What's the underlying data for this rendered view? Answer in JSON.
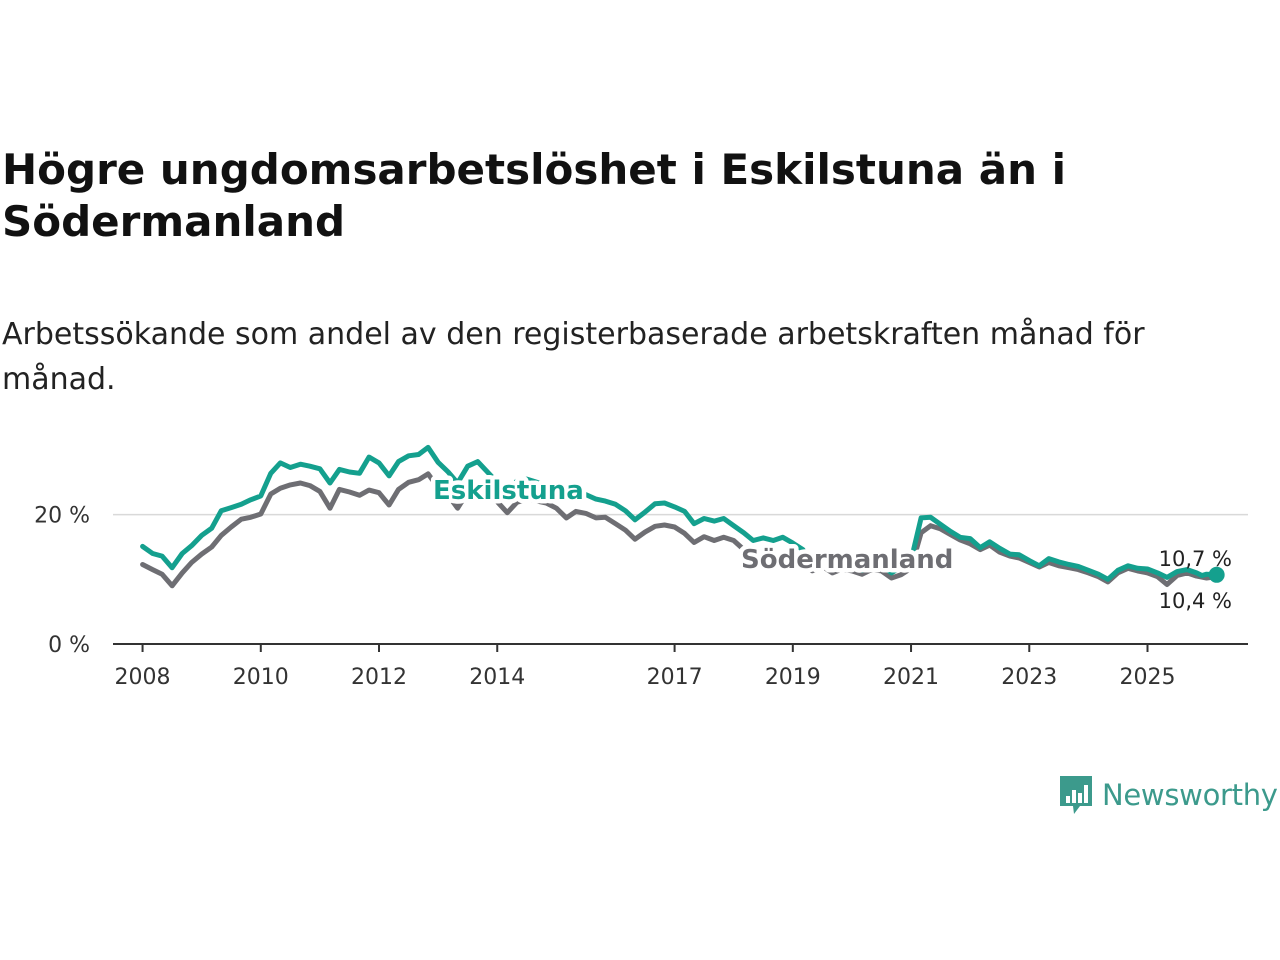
{
  "title": "Högre ungdomsarbetslöshet i Eskilstuna än i Södermanland",
  "subtitle": "Arbetssökande som andel av den registerbaserade arbetskraften månad för månad.",
  "brand": {
    "name": "Newsworthy",
    "color": "#3c9a8c"
  },
  "chart_data": {
    "type": "line",
    "ylim": [
      0,
      30
    ],
    "xlim": [
      2007.5,
      2026.7
    ],
    "y_ticks": [
      0,
      20
    ],
    "y_tick_labels": [
      "0 %",
      "20 %"
    ],
    "x_ticks": [
      2008,
      2010,
      2012,
      2014,
      2017,
      2019,
      2021,
      2023,
      2025
    ],
    "x_tick_labels": [
      "2008",
      "2010",
      "2012",
      "2014",
      "2017",
      "2019",
      "2021",
      "2023",
      "2025"
    ],
    "series": [
      {
        "name": "Södermanland",
        "color": "#6e6e73",
        "label": "Södermanland",
        "end_value_label": "10,4 %",
        "points": [
          [
            2008.0,
            12.3
          ],
          [
            2008.17,
            11.5
          ],
          [
            2008.33,
            10.8
          ],
          [
            2008.5,
            9.0
          ],
          [
            2008.67,
            11.0
          ],
          [
            2008.83,
            12.6
          ],
          [
            2009.0,
            13.9
          ],
          [
            2009.17,
            15.0
          ],
          [
            2009.33,
            16.8
          ],
          [
            2009.5,
            18.1
          ],
          [
            2009.67,
            19.3
          ],
          [
            2009.83,
            19.6
          ],
          [
            2010.0,
            20.1
          ],
          [
            2010.17,
            23.2
          ],
          [
            2010.33,
            24.1
          ],
          [
            2010.5,
            24.6
          ],
          [
            2010.67,
            24.9
          ],
          [
            2010.83,
            24.5
          ],
          [
            2011.0,
            23.6
          ],
          [
            2011.17,
            21.0
          ],
          [
            2011.33,
            23.9
          ],
          [
            2011.5,
            23.5
          ],
          [
            2011.67,
            23.0
          ],
          [
            2011.83,
            23.8
          ],
          [
            2012.0,
            23.4
          ],
          [
            2012.17,
            21.5
          ],
          [
            2012.33,
            23.9
          ],
          [
            2012.5,
            25.0
          ],
          [
            2012.67,
            25.4
          ],
          [
            2012.83,
            26.3
          ],
          [
            2013.0,
            24.2
          ],
          [
            2013.17,
            23.0
          ],
          [
            2013.33,
            21.0
          ],
          [
            2013.5,
            23.5
          ],
          [
            2013.67,
            24.0
          ],
          [
            2014.0,
            22.0
          ],
          [
            2014.17,
            20.3
          ],
          [
            2014.33,
            21.9
          ],
          [
            2014.5,
            22.4
          ],
          [
            2014.67,
            22.1
          ],
          [
            2014.83,
            21.8
          ],
          [
            2015.0,
            21.0
          ],
          [
            2015.17,
            19.5
          ],
          [
            2015.33,
            20.5
          ],
          [
            2015.5,
            20.2
          ],
          [
            2015.67,
            19.5
          ],
          [
            2015.83,
            19.6
          ],
          [
            2016.0,
            18.6
          ],
          [
            2016.17,
            17.6
          ],
          [
            2016.33,
            16.2
          ],
          [
            2016.5,
            17.3
          ],
          [
            2016.67,
            18.2
          ],
          [
            2016.83,
            18.4
          ],
          [
            2017.0,
            18.1
          ],
          [
            2017.17,
            17.1
          ],
          [
            2017.33,
            15.7
          ],
          [
            2017.5,
            16.6
          ],
          [
            2017.67,
            16.0
          ],
          [
            2017.83,
            16.5
          ],
          [
            2018.0,
            16.0
          ],
          [
            2018.17,
            14.6
          ],
          [
            2018.33,
            13.6
          ],
          [
            2018.5,
            14.0
          ],
          [
            2018.67,
            13.5
          ],
          [
            2018.83,
            13.9
          ],
          [
            2019.0,
            13.3
          ],
          [
            2019.17,
            12.4
          ],
          [
            2019.33,
            11.3
          ],
          [
            2019.5,
            12.0
          ],
          [
            2019.67,
            11.0
          ],
          [
            2019.83,
            11.6
          ],
          [
            2020.0,
            11.3
          ],
          [
            2020.17,
            10.8
          ],
          [
            2020.33,
            11.5
          ],
          [
            2020.5,
            11.3
          ],
          [
            2020.67,
            10.2
          ],
          [
            2020.83,
            10.7
          ],
          [
            2021.0,
            11.7
          ],
          [
            2021.17,
            17.2
          ],
          [
            2021.33,
            18.3
          ],
          [
            2021.5,
            17.8
          ],
          [
            2021.67,
            16.9
          ],
          [
            2021.83,
            16.1
          ],
          [
            2022.0,
            15.5
          ],
          [
            2022.17,
            14.6
          ],
          [
            2022.33,
            15.3
          ],
          [
            2022.5,
            14.2
          ],
          [
            2022.67,
            13.6
          ],
          [
            2022.83,
            13.3
          ],
          [
            2023.0,
            12.6
          ],
          [
            2023.17,
            11.9
          ],
          [
            2023.33,
            12.6
          ],
          [
            2023.5,
            12.1
          ],
          [
            2023.67,
            11.8
          ],
          [
            2023.83,
            11.5
          ],
          [
            2024.0,
            11.0
          ],
          [
            2024.17,
            10.4
          ],
          [
            2024.33,
            9.6
          ],
          [
            2024.5,
            11.0
          ],
          [
            2024.67,
            11.7
          ],
          [
            2024.83,
            11.3
          ],
          [
            2025.0,
            11.0
          ],
          [
            2025.17,
            10.4
          ],
          [
            2025.33,
            9.2
          ],
          [
            2025.5,
            10.6
          ],
          [
            2025.67,
            11.0
          ],
          [
            2025.83,
            10.5
          ],
          [
            2026.0,
            10.2
          ],
          [
            2026.17,
            10.4
          ]
        ]
      },
      {
        "name": "Eskilstuna",
        "color": "#14a08e",
        "label": "Eskilstuna",
        "end_value_label": "10,7 %",
        "points": [
          [
            2008.0,
            15.1
          ],
          [
            2008.17,
            14.0
          ],
          [
            2008.33,
            13.6
          ],
          [
            2008.5,
            11.8
          ],
          [
            2008.67,
            14.0
          ],
          [
            2008.83,
            15.2
          ],
          [
            2009.0,
            16.8
          ],
          [
            2009.17,
            17.9
          ],
          [
            2009.33,
            20.6
          ],
          [
            2009.5,
            21.1
          ],
          [
            2009.67,
            21.6
          ],
          [
            2009.83,
            22.3
          ],
          [
            2010.0,
            22.9
          ],
          [
            2010.17,
            26.4
          ],
          [
            2010.33,
            28.0
          ],
          [
            2010.5,
            27.3
          ],
          [
            2010.67,
            27.8
          ],
          [
            2010.83,
            27.5
          ],
          [
            2011.0,
            27.1
          ],
          [
            2011.17,
            24.9
          ],
          [
            2011.33,
            27.0
          ],
          [
            2011.5,
            26.6
          ],
          [
            2011.67,
            26.4
          ],
          [
            2011.83,
            28.9
          ],
          [
            2012.0,
            28.0
          ],
          [
            2012.17,
            26.0
          ],
          [
            2012.33,
            28.2
          ],
          [
            2012.5,
            29.1
          ],
          [
            2012.67,
            29.3
          ],
          [
            2012.83,
            30.4
          ],
          [
            2013.0,
            28.1
          ],
          [
            2013.17,
            26.6
          ],
          [
            2013.33,
            24.9
          ],
          [
            2013.5,
            27.5
          ],
          [
            2013.67,
            28.2
          ],
          [
            2014.0,
            25.0
          ],
          [
            2014.17,
            23.3
          ],
          [
            2014.33,
            25.2
          ],
          [
            2014.5,
            25.5
          ],
          [
            2014.67,
            25.0
          ],
          [
            2014.83,
            24.5
          ],
          [
            2015.0,
            24.3
          ],
          [
            2015.17,
            22.6
          ],
          [
            2015.33,
            23.8
          ],
          [
            2015.5,
            23.1
          ],
          [
            2015.67,
            22.4
          ],
          [
            2015.83,
            22.1
          ],
          [
            2016.0,
            21.6
          ],
          [
            2016.17,
            20.6
          ],
          [
            2016.33,
            19.2
          ],
          [
            2016.5,
            20.4
          ],
          [
            2016.67,
            21.7
          ],
          [
            2016.83,
            21.8
          ],
          [
            2017.0,
            21.2
          ],
          [
            2017.17,
            20.5
          ],
          [
            2017.33,
            18.6
          ],
          [
            2017.5,
            19.4
          ],
          [
            2017.67,
            19.0
          ],
          [
            2017.83,
            19.4
          ],
          [
            2018.0,
            18.3
          ],
          [
            2018.17,
            17.2
          ],
          [
            2018.33,
            16.0
          ],
          [
            2018.5,
            16.4
          ],
          [
            2018.67,
            16.0
          ],
          [
            2018.83,
            16.5
          ],
          [
            2019.0,
            15.6
          ],
          [
            2019.17,
            14.6
          ],
          [
            2019.33,
            12.1
          ],
          [
            2019.5,
            12.5
          ],
          [
            2019.67,
            11.8
          ],
          [
            2019.83,
            12.2
          ],
          [
            2020.0,
            11.9
          ],
          [
            2020.17,
            11.4
          ],
          [
            2020.33,
            12.0
          ],
          [
            2020.5,
            12.2
          ],
          [
            2020.67,
            11.0
          ],
          [
            2020.83,
            11.9
          ],
          [
            2021.0,
            12.9
          ],
          [
            2021.17,
            19.5
          ],
          [
            2021.33,
            19.6
          ],
          [
            2021.5,
            18.5
          ],
          [
            2021.67,
            17.4
          ],
          [
            2021.83,
            16.5
          ],
          [
            2022.0,
            16.3
          ],
          [
            2022.17,
            14.9
          ],
          [
            2022.33,
            15.8
          ],
          [
            2022.5,
            14.8
          ],
          [
            2022.67,
            13.9
          ],
          [
            2022.83,
            13.8
          ],
          [
            2023.0,
            12.9
          ],
          [
            2023.17,
            12.1
          ],
          [
            2023.33,
            13.2
          ],
          [
            2023.5,
            12.7
          ],
          [
            2023.67,
            12.3
          ],
          [
            2023.83,
            12.0
          ],
          [
            2024.0,
            11.4
          ],
          [
            2024.17,
            10.8
          ],
          [
            2024.33,
            10.0
          ],
          [
            2024.5,
            11.4
          ],
          [
            2024.67,
            12.1
          ],
          [
            2024.83,
            11.7
          ],
          [
            2025.0,
            11.6
          ],
          [
            2025.17,
            11.0
          ],
          [
            2025.33,
            10.3
          ],
          [
            2025.5,
            11.2
          ],
          [
            2025.67,
            11.5
          ],
          [
            2025.83,
            11.0
          ],
          [
            2025.92,
            10.6
          ],
          [
            2026.0,
            10.8
          ],
          [
            2026.17,
            10.7
          ]
        ]
      }
    ]
  }
}
